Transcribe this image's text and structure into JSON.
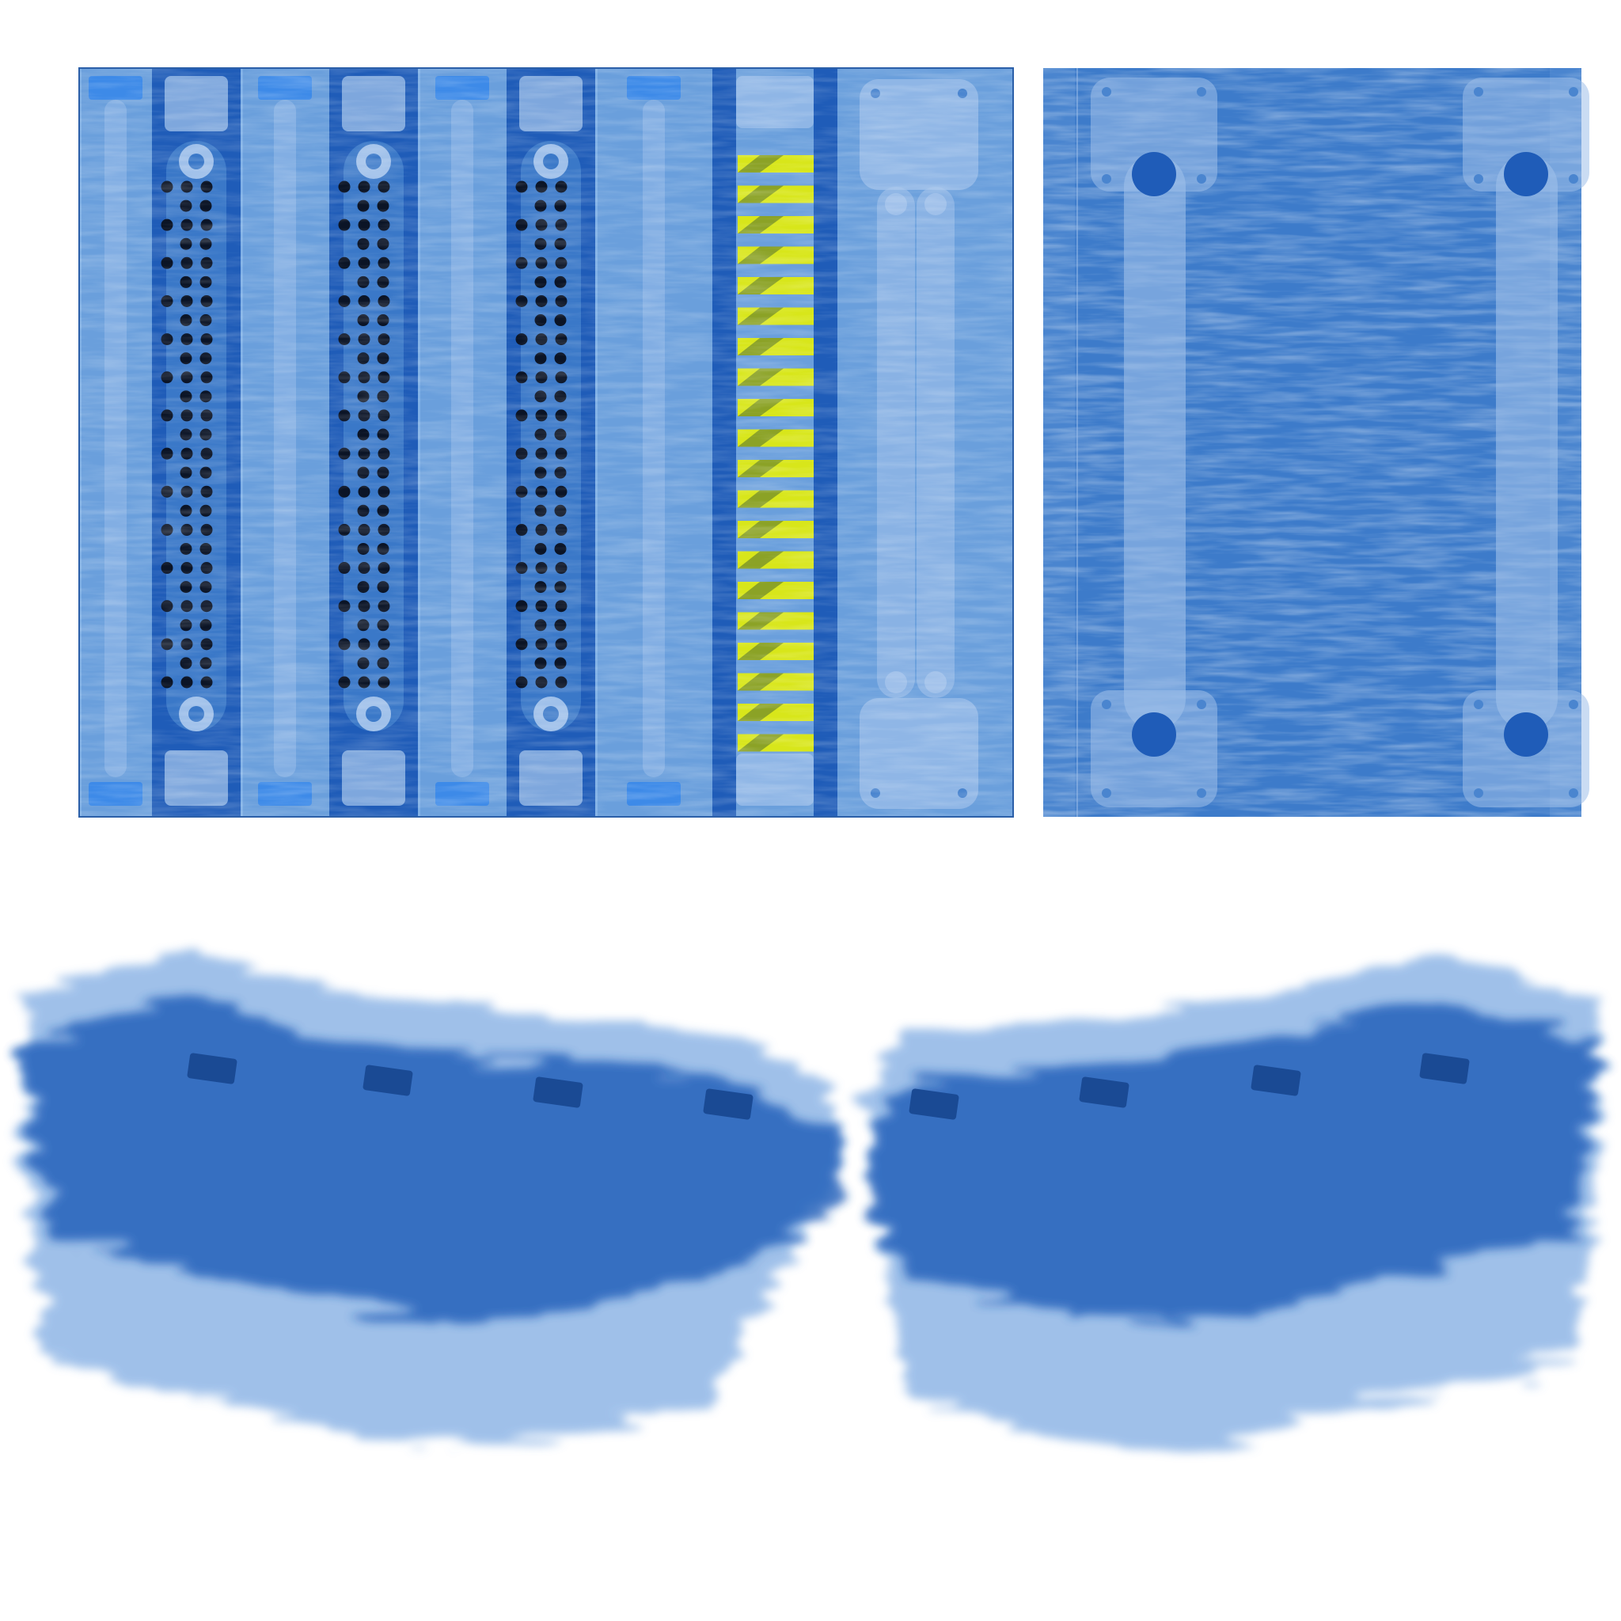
{
  "atlas": {
    "kind": "texture-sheet",
    "background": "#ffffff",
    "colors": {
      "panel_light": "#6a9fdc",
      "panel_mid": "#4a85cf",
      "panel_dark": "#1f5cb8",
      "panel_deep": "#1750a6",
      "trim_pale": "#9fc0ea",
      "latch_bright": "#3d8ae8",
      "hole_black": "#0b1426",
      "hazard_yellow": "#d8e61a",
      "hazard_dark": "#4d6a32",
      "smear_blue": "#2f6ec4"
    },
    "top_left_panel": {
      "strip_pattern": [
        "rail",
        "perforated",
        "rail",
        "perforated",
        "rail",
        "perforated",
        "rail",
        "hazard",
        "handle"
      ],
      "perforated_strip_count": 3,
      "hazard_stripe_count": 20,
      "hole_rows": 27,
      "hole_columns": 3
    },
    "top_right_panel": {
      "handle_count": 2
    },
    "bottom_wings": {
      "count": 2,
      "tabs_per_wing": 4
    }
  }
}
